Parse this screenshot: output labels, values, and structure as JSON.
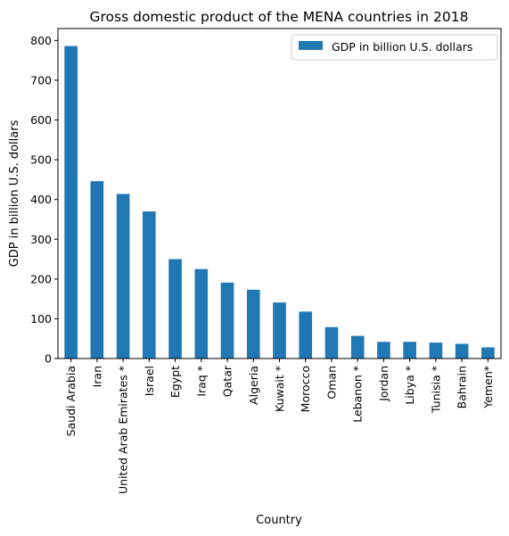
{
  "chart_data": {
    "type": "bar",
    "title": "Gross domestic product of the MENA countries in 2018",
    "xlabel": "Country",
    "ylabel": "GDP in billion U.S. dollars",
    "ylim": [
      0,
      830
    ],
    "yticks": [
      0,
      100,
      200,
      300,
      400,
      500,
      600,
      700,
      800
    ],
    "grid": false,
    "legend_position": "top-right",
    "bar_color": "#1f77b4",
    "categories": [
      "Saudi Arabia",
      "Iran",
      "United Arab Emirates *",
      "Israel",
      "Egypt",
      "Iraq *",
      "Qatar",
      "Algeria",
      "Kuwait *",
      "Morocco",
      "Oman",
      "Lebanon *",
      "Jordan",
      "Libya *",
      "Tunisia *",
      "Bahrain",
      "Yemen*"
    ],
    "series": [
      {
        "name": "GDP in billion U.S. dollars",
        "values": [
          786,
          446,
          414,
          370,
          250,
          225,
          191,
          173,
          141,
          118,
          79,
          57,
          42,
          42,
          40,
          37,
          28
        ]
      }
    ]
  }
}
